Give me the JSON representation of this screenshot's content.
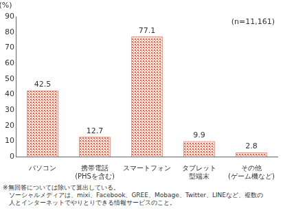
{
  "chart_data": {
    "type": "bar",
    "y_label": "(%)",
    "annotation": "(n=11,161)",
    "categories": [
      "パソコン",
      "携帯電話\n(PHSを含む)",
      "スマートフォン",
      "タブレット\n型端末",
      "その他\n(ゲーム機など)"
    ],
    "values": [
      42.5,
      12.7,
      77.1,
      9.9,
      2.8
    ],
    "color": "#e0604a",
    "ylim": [
      0,
      90
    ],
    "yticks": [
      0,
      10,
      20,
      30,
      40,
      50,
      60,
      70,
      80,
      90
    ],
    "grid": false,
    "data_labels": true,
    "notes": [
      "※無回答については除いて算出している。",
      "ソーシャルメディアは、mixi、Facebook、GREE、Mobage、Twitter、LINEなど、複数の",
      "人とインターネットでやりとりできる情報サービスのこと。"
    ]
  }
}
